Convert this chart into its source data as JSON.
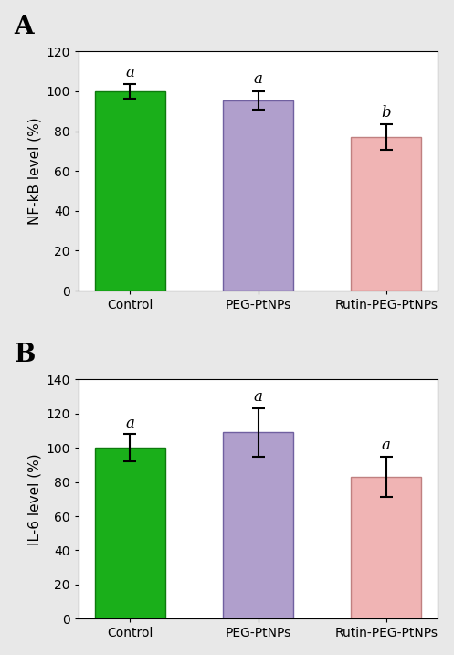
{
  "panel_A": {
    "categories": [
      "Control",
      "PEG-PtNPs",
      "Rutin-PEG-PtNPs"
    ],
    "values": [
      100,
      95.5,
      77
    ],
    "errors": [
      3.5,
      4.5,
      6.5
    ],
    "letters": [
      "a",
      "a",
      "b"
    ],
    "bar_colors": [
      "#1aaf1a",
      "#b09fcc",
      "#f0b4b4"
    ],
    "bar_edgecolors": [
      "#0d7a0d",
      "#7060a0",
      "#c08080"
    ],
    "ylabel": "NF-kB level (%)",
    "ylim": [
      0,
      120
    ],
    "yticks": [
      0,
      20,
      40,
      60,
      80,
      100,
      120
    ],
    "panel_label": "A"
  },
  "panel_B": {
    "categories": [
      "Control",
      "PEG-PtNPs",
      "Rutin-PEG-PtNPs"
    ],
    "values": [
      100,
      109,
      83
    ],
    "errors": [
      8,
      14,
      12
    ],
    "letters": [
      "a",
      "a",
      "a"
    ],
    "bar_colors": [
      "#1aaf1a",
      "#b09fcc",
      "#f0b4b4"
    ],
    "bar_edgecolors": [
      "#0d7a0d",
      "#7060a0",
      "#c08080"
    ],
    "ylabel": "IL-6 level (%)",
    "ylim": [
      0,
      140
    ],
    "yticks": [
      0,
      20,
      40,
      60,
      80,
      100,
      120,
      140
    ],
    "panel_label": "B"
  },
  "background_color": "#ffffff",
  "outer_bg": "#e8e8e8",
  "bar_width": 0.55,
  "figsize": [
    4.97,
    7.17
  ],
  "dpi": 100
}
